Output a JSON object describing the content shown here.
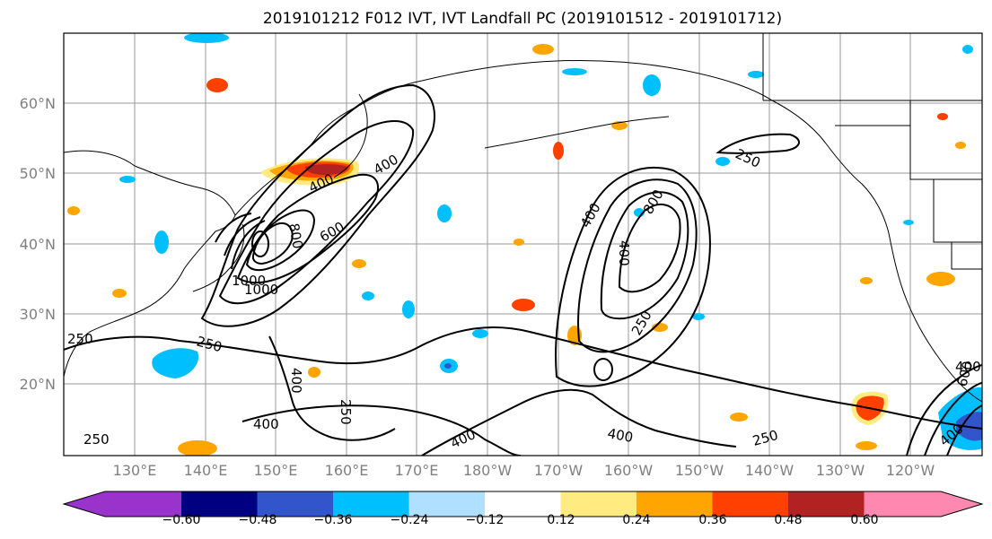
{
  "title": "2019101212 F012 IVT, IVT Landfall PC (2019101512 - 2019101712)",
  "latitude_labels": [
    "60°N",
    "50°N",
    "40°N",
    "30°N",
    "20°N"
  ],
  "longitude_labels": [
    "130°E",
    "140°E",
    "150°E",
    "160°E",
    "170°E",
    "180°W",
    "170°W",
    "160°W",
    "150°W",
    "140°W",
    "130°W",
    "120°W"
  ],
  "colorbar": {
    "colors": [
      "#9933cc",
      "#000080",
      "#3355cc",
      "#00bfff",
      "#b0e0ff",
      "#ffffff",
      "#ffeb80",
      "#ffa500",
      "#ff4000",
      "#b22222",
      "#ff88b0"
    ],
    "tick_labels": [
      "−0.60",
      "−0.48",
      "−0.36",
      "−0.24",
      "−0.12",
      "0.12",
      "0.24",
      "0.36",
      "0.48",
      "0.60"
    ]
  },
  "contour_labels": [
    "400",
    "400",
    "600",
    "800",
    "1000",
    "1000",
    "250",
    "250",
    "400",
    "400",
    "400",
    "400",
    "800",
    "400",
    "250",
    "250",
    "400",
    "250",
    "400",
    "600",
    "400",
    "250",
    "250"
  ]
}
